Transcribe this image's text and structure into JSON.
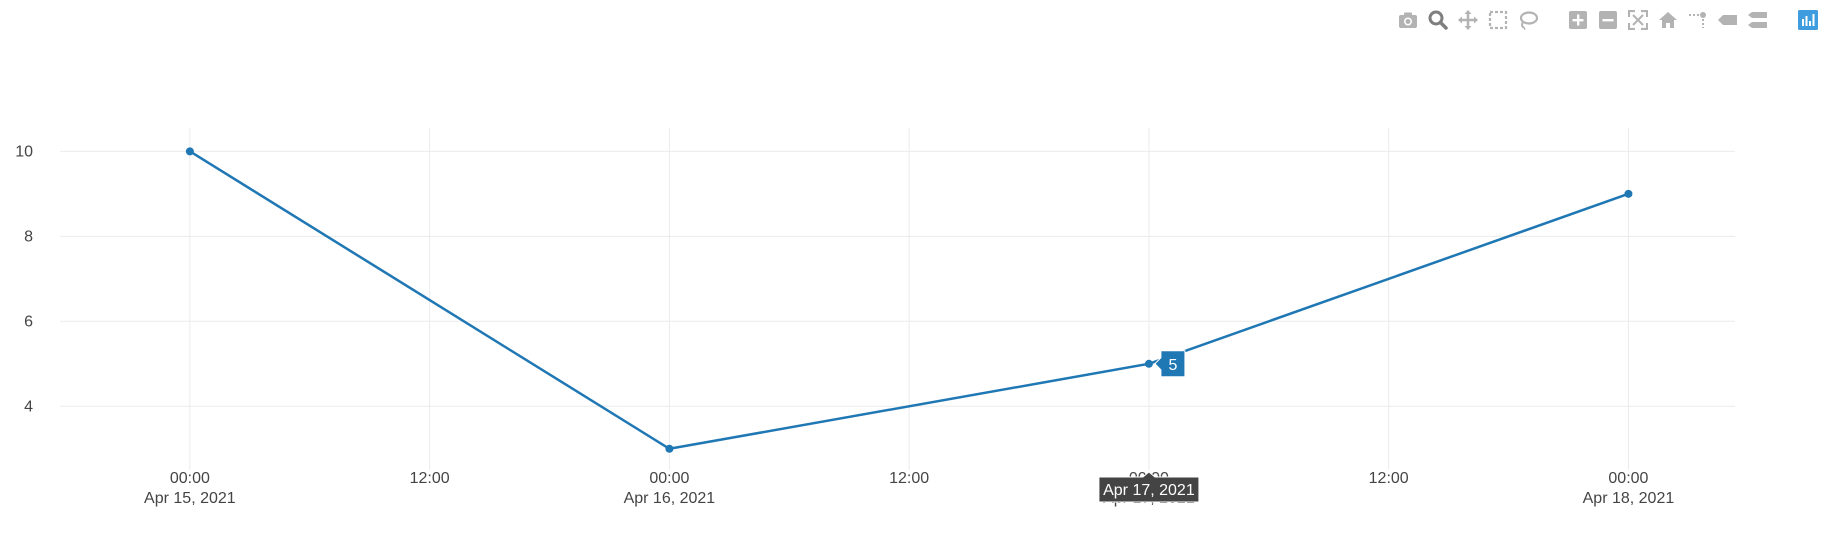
{
  "modebar": {
    "buttons": [
      {
        "name": "camera-icon",
        "group": 0
      },
      {
        "name": "zoom-icon",
        "group": 0,
        "active": true
      },
      {
        "name": "pan-icon",
        "group": 0
      },
      {
        "name": "box-select-icon",
        "group": 0
      },
      {
        "name": "lasso-select-icon",
        "group": 0
      },
      {
        "name": "zoom-in-icon",
        "group": 1
      },
      {
        "name": "zoom-out-icon",
        "group": 1
      },
      {
        "name": "autoscale-icon",
        "group": 1
      },
      {
        "name": "reset-axes-icon",
        "group": 1
      },
      {
        "name": "spike-lines-icon",
        "group": 1
      },
      {
        "name": "hover-closest-icon",
        "group": 1
      },
      {
        "name": "hover-compare-icon",
        "group": 1
      },
      {
        "name": "plotly-logo-icon",
        "group": 2
      }
    ],
    "colors": {
      "icon": "#b3b3b3",
      "active": "#7f7f7f",
      "logo": "#3f9ddf"
    }
  },
  "chart_data": {
    "type": "line",
    "x": [
      "2021-04-15",
      "2021-04-16",
      "2021-04-17",
      "2021-04-18"
    ],
    "y": [
      10,
      3,
      5,
      9
    ],
    "xlim": [
      "2021-04-14 17:30",
      "2021-04-18 05:20"
    ],
    "ylim": [
      2.5,
      10.55
    ],
    "yticks": [
      4,
      6,
      8,
      10
    ],
    "xticks": [
      {
        "value": "2021-04-15 00:00",
        "time": "00:00",
        "date": "Apr 15, 2021"
      },
      {
        "value": "2021-04-15 12:00",
        "time": "12:00",
        "date": ""
      },
      {
        "value": "2021-04-16 00:00",
        "time": "00:00",
        "date": "Apr 16, 2021"
      },
      {
        "value": "2021-04-16 12:00",
        "time": "12:00",
        "date": ""
      },
      {
        "value": "2021-04-17 00:00",
        "time": "00:00",
        "date": "Apr 17, 2021"
      },
      {
        "value": "2021-04-17 12:00",
        "time": "12:00",
        "date": ""
      },
      {
        "value": "2021-04-18 00:00",
        "time": "00:00",
        "date": "Apr 18, 2021"
      }
    ],
    "grid": true,
    "line_color": "#1f77b4",
    "hover": {
      "x_label": "Apr 17, 2021",
      "y_label": "5",
      "point_index": 2
    }
  }
}
